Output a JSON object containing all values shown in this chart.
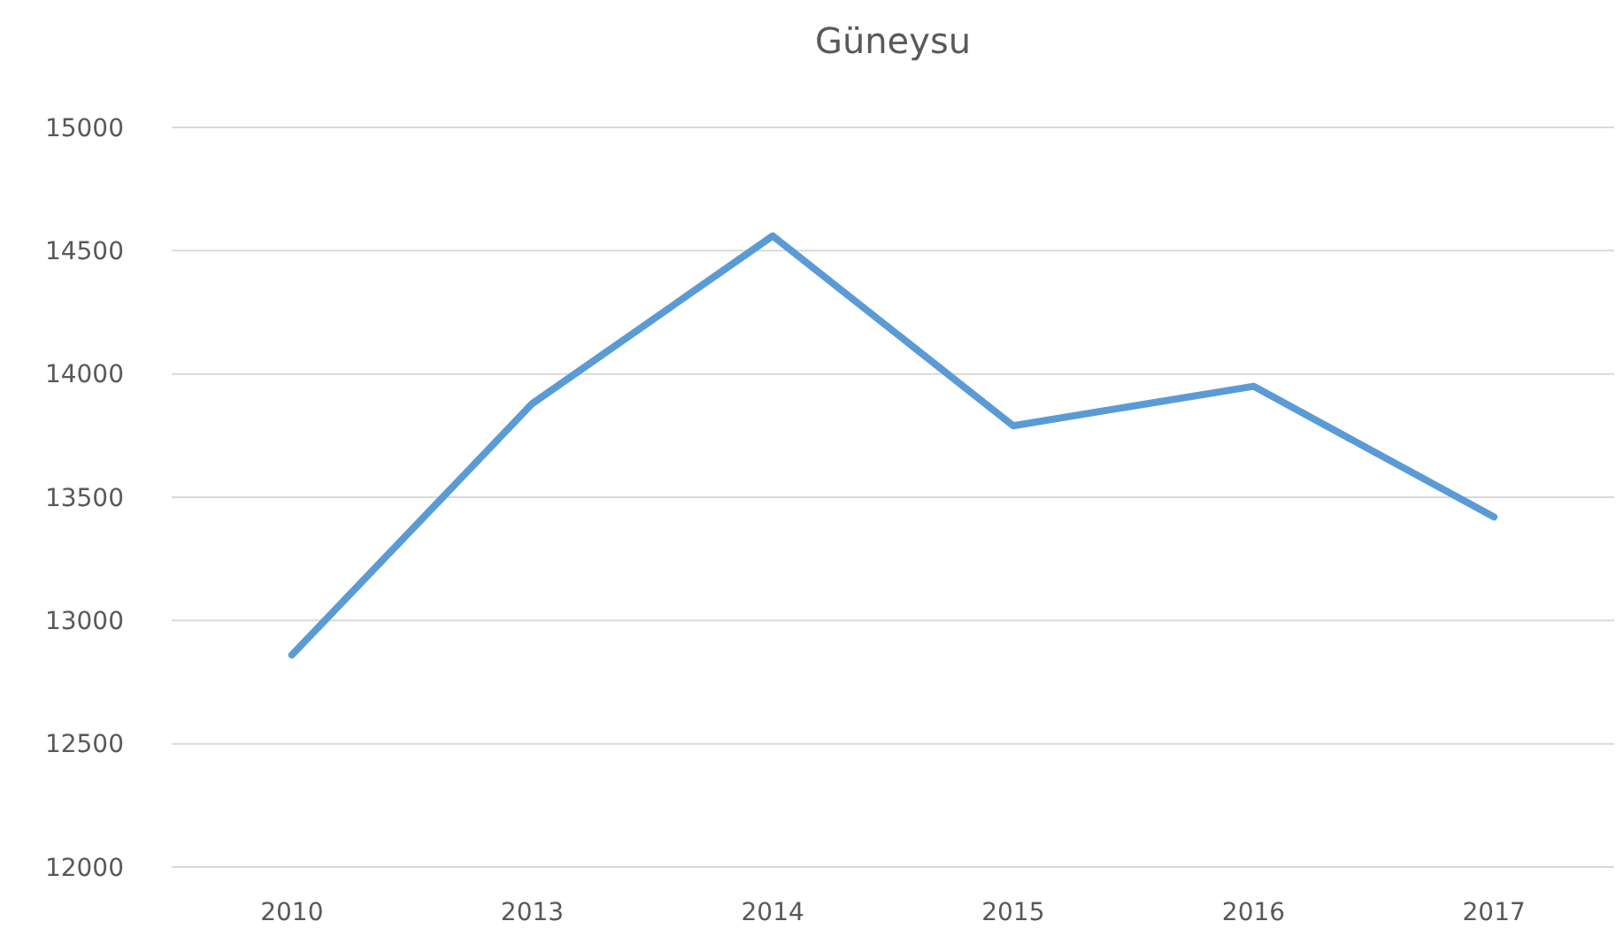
{
  "chart_data": {
    "type": "line",
    "title": "Güneysu",
    "categories": [
      "2010",
      "2013",
      "2014",
      "2015",
      "2016",
      "2017"
    ],
    "series": [
      {
        "color": "#5b9bd5",
        "values": [
          12860,
          13880,
          14560,
          13790,
          13950,
          13420
        ]
      }
    ],
    "ylim": [
      12000,
      15000
    ],
    "yticks": [
      12000,
      12500,
      13000,
      13500,
      14000,
      14500,
      15000
    ],
    "grid": "y",
    "marker": "none",
    "line_style": "solid"
  }
}
